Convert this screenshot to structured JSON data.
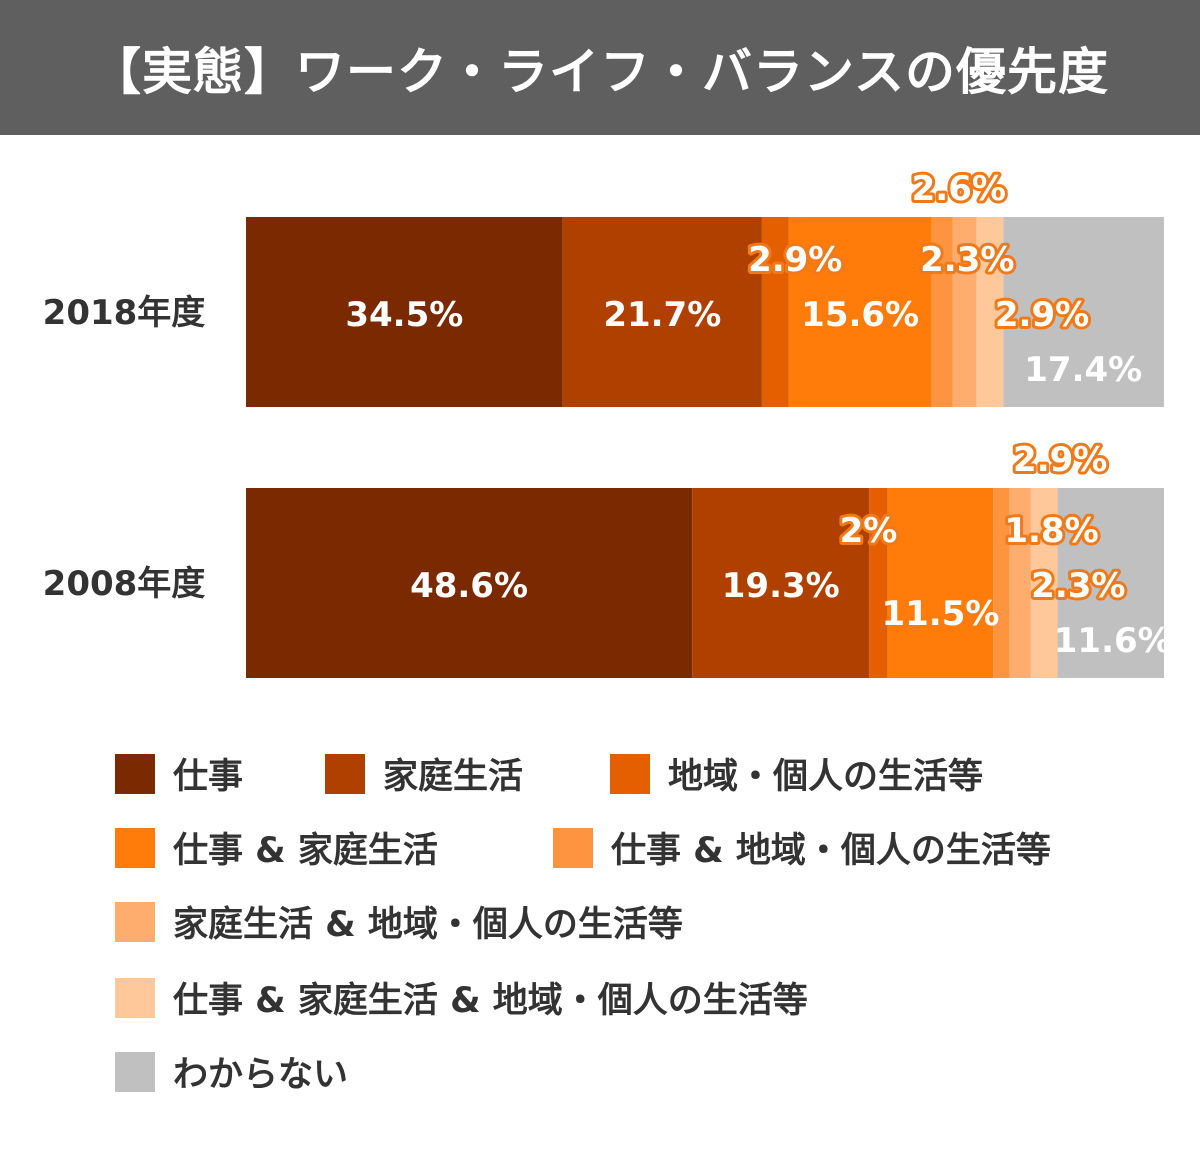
{
  "header": {
    "title": "【実態】ワーク・ライフ・バランスの優先度"
  },
  "chart_data": {
    "type": "bar",
    "orientation": "horizontal",
    "stacked": true,
    "title": "【実態】ワーク・ライフ・バランスの優先度",
    "categories": [
      "2018年度",
      "2008年度"
    ],
    "series": [
      {
        "name": "仕事",
        "color": "#7b2900",
        "values": [
          34.5,
          48.6
        ],
        "labels": [
          "34.5%",
          "48.6%"
        ]
      },
      {
        "name": "家庭生活",
        "color": "#b04000",
        "values": [
          21.7,
          19.3
        ],
        "labels": [
          "21.7%",
          "19.3%"
        ]
      },
      {
        "name": "地域・個人の生活等",
        "color": "#e55f00",
        "values": [
          2.9,
          2.0
        ],
        "labels": [
          "2.9%",
          "2%"
        ]
      },
      {
        "name": "仕事 & 家庭生活",
        "color": "#ff7b0a",
        "values": [
          15.6,
          11.5
        ],
        "labels": [
          "15.6%",
          "11.5%"
        ]
      },
      {
        "name": "仕事 & 地域・個人の生活等",
        "color": "#ff9440",
        "values": [
          2.3,
          1.8
        ],
        "labels": [
          "2.3%",
          "1.8%"
        ]
      },
      {
        "name": "家庭生活 & 地域・個人の生活等",
        "color": "#ffad6e",
        "values": [
          2.6,
          2.3
        ],
        "labels": [
          "2.6%",
          "2.3%"
        ]
      },
      {
        "name": "仕事 & 家庭生活 & 地域・個人の生活等",
        "color": "#ffc89b",
        "values": [
          2.9,
          2.9
        ],
        "labels": [
          "2.9%",
          "2.9%"
        ]
      },
      {
        "name": "わからない",
        "color": "#c0c0c0",
        "values": [
          17.4,
          11.6
        ],
        "labels": [
          "17.4%",
          "11.6%"
        ]
      }
    ],
    "xlim": [
      0,
      100
    ],
    "legend": "bottom",
    "grid": false
  }
}
